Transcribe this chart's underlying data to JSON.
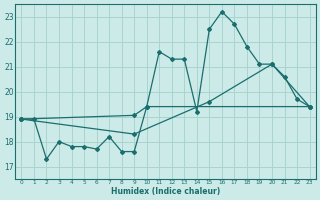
{
  "background_color": "#cceae7",
  "grid_color": "#aad4d0",
  "line_color": "#1a6e6e",
  "xlabel": "Humidex (Indice chaleur)",
  "xlim": [
    -0.5,
    23.5
  ],
  "ylim": [
    16.5,
    23.5
  ],
  "yticks": [
    17,
    18,
    19,
    20,
    21,
    22,
    23
  ],
  "xticks": [
    0,
    1,
    2,
    3,
    4,
    5,
    6,
    7,
    8,
    9,
    10,
    11,
    12,
    13,
    14,
    15,
    16,
    17,
    18,
    19,
    20,
    21,
    22,
    23
  ],
  "line1_x": [
    0,
    1,
    2,
    3,
    4,
    5,
    6,
    7,
    8,
    9,
    10,
    11,
    12,
    13,
    14,
    15,
    16,
    17,
    18,
    19,
    20,
    21,
    22,
    23
  ],
  "line1_y": [
    18.9,
    18.9,
    17.3,
    18.0,
    17.8,
    17.8,
    17.7,
    18.2,
    17.6,
    17.6,
    19.4,
    21.6,
    21.3,
    21.3,
    19.2,
    22.5,
    23.2,
    22.7,
    21.8,
    21.1,
    21.1,
    20.6,
    19.7,
    19.4
  ],
  "line2_x": [
    0,
    9,
    10,
    23
  ],
  "line2_y": [
    18.9,
    19.05,
    19.4,
    19.4
  ],
  "line3_x": [
    0,
    9,
    15,
    20,
    23
  ],
  "line3_y": [
    18.9,
    18.3,
    19.6,
    21.1,
    19.4
  ]
}
